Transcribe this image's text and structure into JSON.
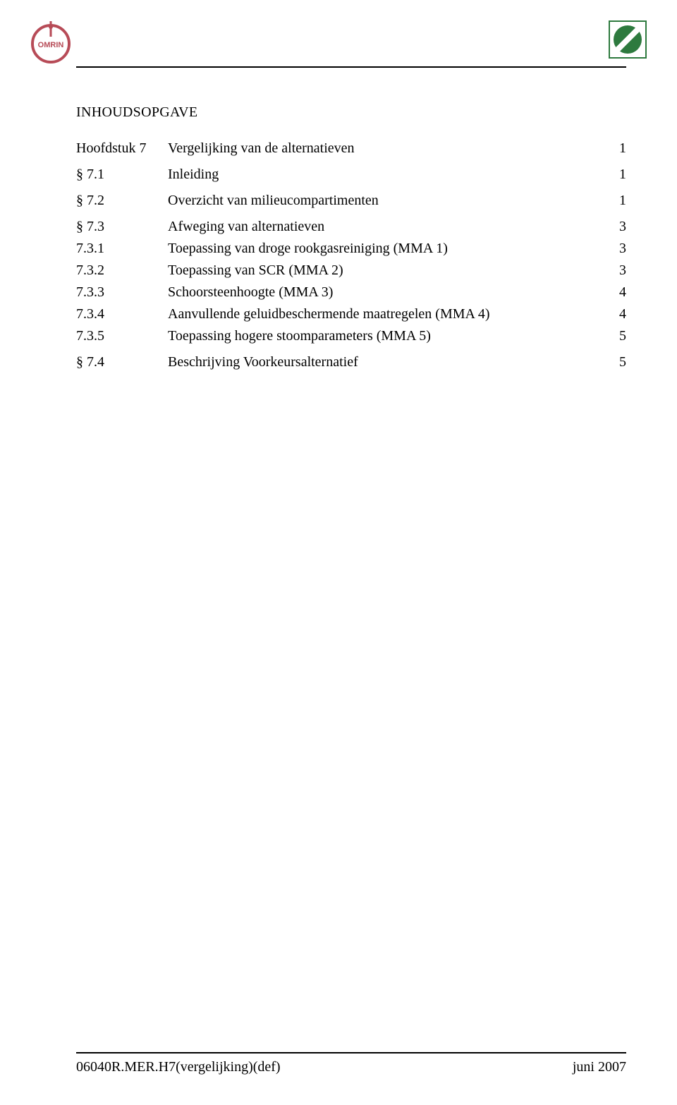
{
  "header": {
    "logo_left": {
      "name": "omrin-logo",
      "ring_color": "#b74b57",
      "text": "OMRIN",
      "text_color": "#ffffff"
    },
    "logo_right": {
      "name": "green-circle-logo",
      "circle_color": "#2d7a3e",
      "slash_color": "#ffffff",
      "frame_color": "#2d7a3e"
    }
  },
  "title": "INHOUDSOPGAVE",
  "toc": [
    {
      "num": "Hoofdstuk 7",
      "text": "Vergelijking van de alternatieven",
      "page": "1",
      "level": 0,
      "gap_after": true
    },
    {
      "num": "§ 7.1",
      "text": "Inleiding",
      "page": "1",
      "level": 1,
      "gap_after": true
    },
    {
      "num": "§ 7.2",
      "text": "Overzicht van milieucompartimenten",
      "page": "1",
      "level": 1,
      "gap_after": true
    },
    {
      "num": "§ 7.3",
      "text": "Afweging van alternatieven",
      "page": "3",
      "level": 1
    },
    {
      "num": "7.3.1",
      "text": "Toepassing van droge rookgasreiniging (MMA 1)",
      "page": "3",
      "level": 2
    },
    {
      "num": "7.3.2",
      "text": "Toepassing van SCR (MMA 2)",
      "page": "3",
      "level": 2
    },
    {
      "num": "7.3.3",
      "text": "Schoorsteenhoogte (MMA 3)",
      "page": "4",
      "level": 2
    },
    {
      "num": "7.3.4",
      "text": "Aanvullende geluidbeschermende maatregelen (MMA 4)",
      "page": "4",
      "level": 2
    },
    {
      "num": "7.3.5",
      "text": "Toepassing hogere stoomparameters (MMA 5)",
      "page": "5",
      "level": 2,
      "gap_after": true
    },
    {
      "num": "§ 7.4",
      "text": "Beschrijving Voorkeursalternatief",
      "page": "5",
      "level": 1
    }
  ],
  "footer": {
    "left": "06040R.MER.H7(vergelijking)(def)",
    "right": "juni 2007"
  }
}
